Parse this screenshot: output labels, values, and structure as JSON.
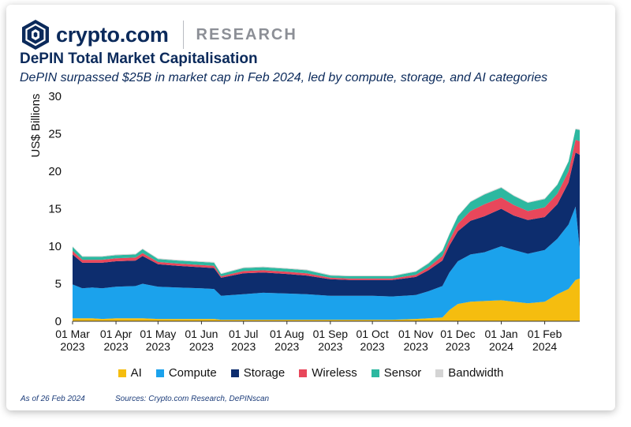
{
  "header": {
    "brand_name": "crypto.com",
    "brand_sub": "RESEARCH",
    "title": "DePIN Total Market Capitalisation",
    "subtitle": "DePIN surpassed $25B in market cap in Feb 2024, led by compute, storage, and AI categories"
  },
  "footer": {
    "as_of": "As of 26 Feb 2024",
    "sources": "Sources: Crypto.com Research, DePINscan"
  },
  "chart_data": {
    "type": "area",
    "stacked": true,
    "ylabel": "US$ Billions",
    "ylim": [
      0,
      30
    ],
    "yticks": [
      0,
      5,
      10,
      15,
      20,
      25,
      30
    ],
    "grid": false,
    "legend_position": "bottom",
    "xticks": [
      {
        "date": "2023-03-01",
        "line1": "01 Mar",
        "line2": "2023"
      },
      {
        "date": "2023-04-01",
        "line1": "01 Apr",
        "line2": "2023"
      },
      {
        "date": "2023-05-01",
        "line1": "01 May",
        "line2": "2023"
      },
      {
        "date": "2023-06-01",
        "line1": "01 Jun",
        "line2": "2023"
      },
      {
        "date": "2023-07-01",
        "line1": "01 Jul",
        "line2": "2023"
      },
      {
        "date": "2023-08-01",
        "line1": "01 Aug",
        "line2": "2023"
      },
      {
        "date": "2023-09-01",
        "line1": "01 Sep",
        "line2": "2023"
      },
      {
        "date": "2023-10-01",
        "line1": "01 Oct",
        "line2": "2023"
      },
      {
        "date": "2023-11-01",
        "line1": "01 Nov",
        "line2": "2023"
      },
      {
        "date": "2023-12-01",
        "line1": "01 Dec",
        "line2": "2023"
      },
      {
        "date": "2024-01-01",
        "line1": "01 Jan",
        "line2": "2024"
      },
      {
        "date": "2024-02-01",
        "line1": "01 Feb",
        "line2": "2024"
      }
    ],
    "x": [
      "2023-03-01",
      "2023-03-08",
      "2023-03-15",
      "2023-03-22",
      "2023-04-01",
      "2023-04-15",
      "2023-04-20",
      "2023-05-01",
      "2023-05-15",
      "2023-06-01",
      "2023-06-10",
      "2023-06-15",
      "2023-07-01",
      "2023-07-15",
      "2023-08-01",
      "2023-08-15",
      "2023-09-01",
      "2023-09-15",
      "2023-10-01",
      "2023-10-15",
      "2023-11-01",
      "2023-11-10",
      "2023-11-20",
      "2023-11-25",
      "2023-12-01",
      "2023-12-10",
      "2023-12-20",
      "2024-01-01",
      "2024-01-10",
      "2024-01-20",
      "2024-02-01",
      "2024-02-10",
      "2024-02-18",
      "2024-02-23",
      "2024-02-26"
    ],
    "series": [
      {
        "name": "AI",
        "color": "#f5bd0f",
        "values": [
          0.4,
          0.4,
          0.4,
          0.3,
          0.4,
          0.4,
          0.4,
          0.3,
          0.3,
          0.3,
          0.3,
          0.2,
          0.2,
          0.2,
          0.2,
          0.2,
          0.2,
          0.2,
          0.2,
          0.2,
          0.3,
          0.4,
          0.5,
          1.5,
          2.3,
          2.6,
          2.7,
          2.8,
          2.6,
          2.4,
          2.6,
          3.6,
          4.3,
          5.5,
          5.7
        ]
      },
      {
        "name": "Compute",
        "color": "#1ba2ec",
        "values": [
          4.5,
          4.0,
          4.1,
          4.1,
          4.2,
          4.3,
          4.6,
          4.3,
          4.2,
          4.1,
          4.0,
          3.2,
          3.4,
          3.6,
          3.5,
          3.4,
          3.2,
          3.2,
          3.2,
          3.1,
          3.2,
          3.6,
          4.2,
          5.0,
          5.7,
          6.3,
          6.5,
          7.2,
          6.9,
          6.6,
          6.9,
          7.4,
          8.6,
          9.8,
          4.0
        ]
      },
      {
        "name": "Storage",
        "color": "#0d2d6e",
        "values": [
          4.0,
          3.4,
          3.3,
          3.4,
          3.4,
          3.4,
          3.7,
          3.0,
          2.9,
          2.8,
          2.8,
          2.4,
          2.8,
          2.7,
          2.6,
          2.5,
          2.2,
          2.1,
          2.1,
          2.2,
          2.4,
          2.8,
          3.4,
          3.6,
          4.0,
          4.5,
          4.8,
          5.0,
          4.6,
          4.5,
          4.4,
          4.6,
          5.6,
          7.2,
          12.5
        ]
      },
      {
        "name": "Wireless",
        "color": "#e8475b",
        "values": [
          0.5,
          0.4,
          0.4,
          0.4,
          0.4,
          0.4,
          0.4,
          0.3,
          0.3,
          0.3,
          0.3,
          0.2,
          0.3,
          0.3,
          0.3,
          0.3,
          0.2,
          0.2,
          0.2,
          0.2,
          0.3,
          0.4,
          0.6,
          0.7,
          1.0,
          1.3,
          1.6,
          1.5,
          1.4,
          1.2,
          1.3,
          1.4,
          1.5,
          1.7,
          1.8
        ]
      },
      {
        "name": "Sensor",
        "color": "#2cb8a0",
        "values": [
          0.5,
          0.4,
          0.4,
          0.4,
          0.4,
          0.4,
          0.5,
          0.4,
          0.4,
          0.4,
          0.4,
          0.3,
          0.4,
          0.4,
          0.4,
          0.4,
          0.3,
          0.3,
          0.3,
          0.3,
          0.4,
          0.5,
          0.7,
          0.8,
          1.0,
          1.2,
          1.3,
          1.3,
          1.2,
          1.1,
          1.1,
          1.2,
          1.3,
          1.4,
          1.5
        ]
      },
      {
        "name": "Bandwidth",
        "color": "#d4d4d4",
        "values": [
          0.1,
          0.1,
          0.1,
          0.1,
          0.1,
          0.1,
          0.1,
          0.1,
          0.1,
          0.1,
          0.1,
          0.1,
          0.1,
          0.1,
          0.1,
          0.1,
          0.1,
          0.1,
          0.1,
          0.1,
          0.1,
          0.1,
          0.1,
          0.1,
          0.1,
          0.1,
          0.1,
          0.1,
          0.1,
          0.1,
          0.1,
          0.1,
          0.1,
          0.1,
          0.1
        ]
      }
    ]
  }
}
